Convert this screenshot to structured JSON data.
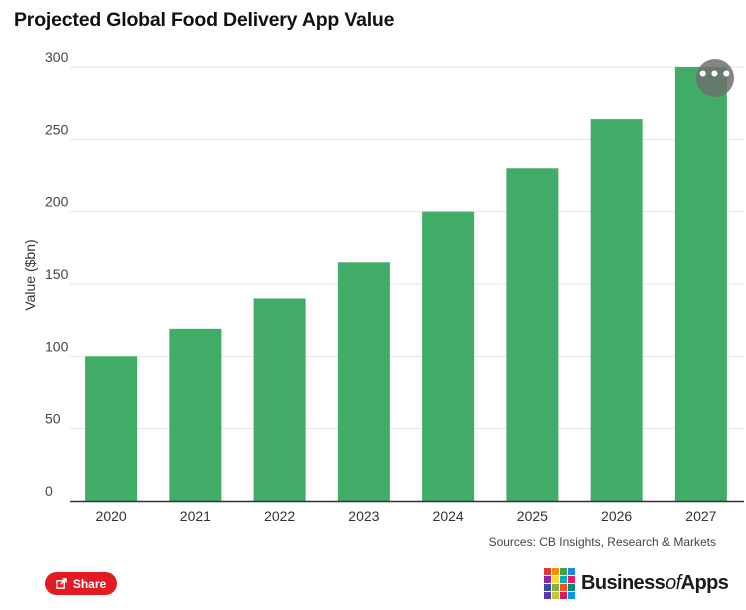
{
  "page": {
    "title": "Projected Global Food Delivery App Value",
    "source": "Sources: CB Insights, Research & Markets",
    "share_label": "Share",
    "menu_icon": "more-horizontal-icon",
    "menu_glyph": "•••"
  },
  "brand": {
    "name_pre": "Business",
    "name_of": "of",
    "name_post": "Apps",
    "logo_colors": [
      "#e53935",
      "#fb8c00",
      "#43a047",
      "#1e88e5",
      "#8e24aa",
      "#fdd835",
      "#00acc1",
      "#e91e63",
      "#3949ab",
      "#7cb342",
      "#f4511e",
      "#00897b",
      "#5e35b1",
      "#c0ca33",
      "#d81b60",
      "#039be5"
    ]
  },
  "chart_data": {
    "type": "bar",
    "categories": [
      "2020",
      "2021",
      "2022",
      "2023",
      "2024",
      "2025",
      "2026",
      "2027"
    ],
    "values": [
      100,
      119,
      140,
      165,
      200,
      230,
      264,
      300
    ],
    "xlabel": "",
    "ylabel": "Value ($bn)",
    "ylim": [
      0,
      300
    ],
    "yticks": [
      0,
      50,
      100,
      150,
      200,
      250,
      300
    ],
    "bar_color": "#41ac68",
    "grid": true,
    "legend": "none"
  }
}
